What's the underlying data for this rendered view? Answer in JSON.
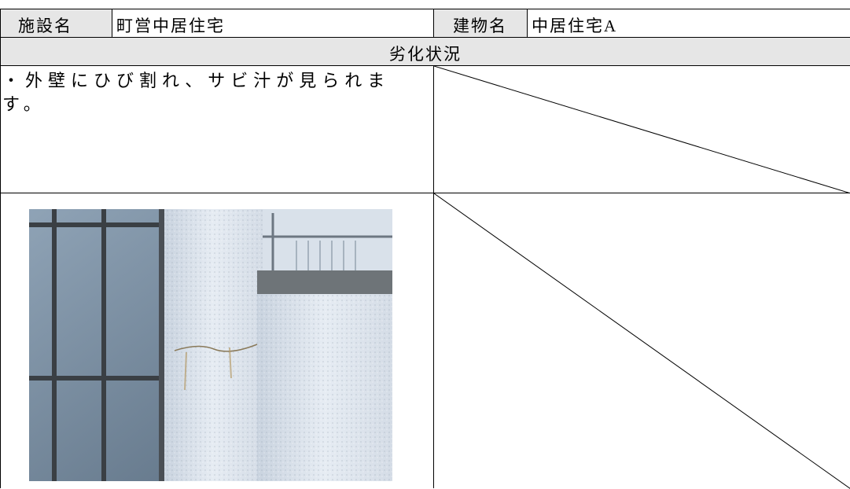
{
  "header": {
    "facility_label": "施設名",
    "facility": "町営中居住宅",
    "building_label": "建物名",
    "building": "中居住宅A"
  },
  "section": "劣化状況",
  "description": "・外壁にひび割れ、サビ汁が見られます。"
}
